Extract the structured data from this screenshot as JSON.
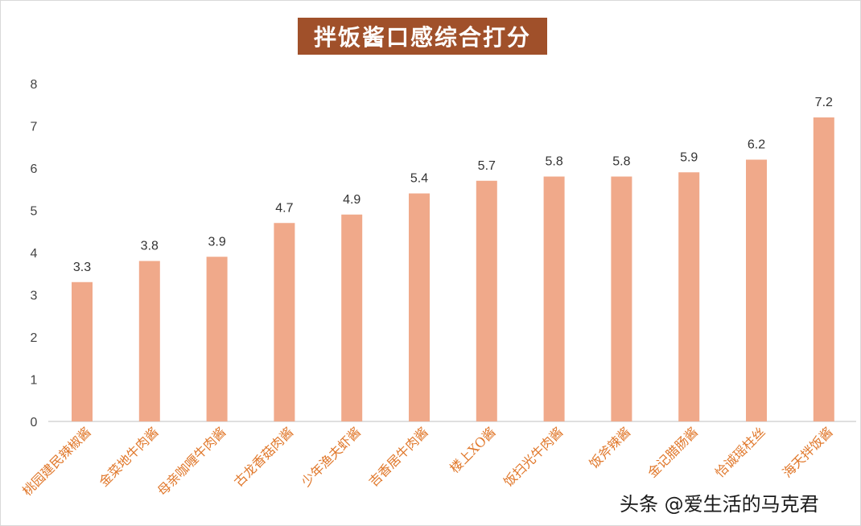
{
  "colors": {
    "bar": "#f0a98a",
    "title_bg": "#a0502a",
    "category_label": "#e0772a",
    "axis_text": "#444444",
    "axis_line": "#bfbfbf"
  },
  "chart_data": {
    "type": "bar",
    "title": "拌饭酱口感综合打分",
    "categories": [
      "桃园建民辣椒酱",
      "金菜地牛肉酱",
      "母亲咖喱牛肉酱",
      "古龙香菇肉酱",
      "少年渔夫虾酱",
      "吉香居牛肉酱",
      "楼上XO酱",
      "饭扫光牛肉酱",
      "饭斧辣酱",
      "金记腊肠酱",
      "恰诚瑶柱丝",
      "海天拌饭酱"
    ],
    "values": [
      3.3,
      3.8,
      3.9,
      4.7,
      4.9,
      5.4,
      5.7,
      5.8,
      5.8,
      5.9,
      6.2,
      7.2
    ],
    "value_labels": [
      "3.3",
      "3.8",
      "3.9",
      "4.7",
      "4.9",
      "5.4",
      "5.7",
      "5.8",
      "5.8",
      "5.9",
      "6.2",
      "7.2"
    ],
    "y_ticks": [
      "0",
      "1",
      "2",
      "3",
      "4",
      "5",
      "6",
      "7",
      "8"
    ],
    "ylim": [
      0,
      8
    ],
    "xlabel": "",
    "ylabel": "",
    "grid": false,
    "legend": "none"
  },
  "watermark": "头条 @爱生活的马克君"
}
